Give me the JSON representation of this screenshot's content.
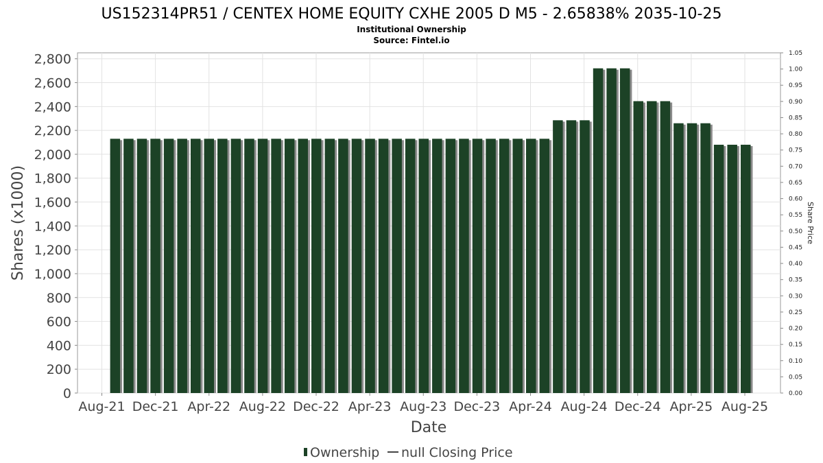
{
  "chart_data": {
    "type": "bar",
    "title": "US152314PR51 / CENTEX HOME EQUITY CXHE 2005 D M5 - 2.65838% 2035-10-25",
    "subtitle_lines": [
      "Institutional Ownership",
      "Source: Fintel.io"
    ],
    "xlabel": "Date",
    "ylabel": "Shares (x1000)",
    "y2label": "Share Price",
    "ylim": [
      0,
      2850
    ],
    "y2lim": [
      0,
      1.05
    ],
    "yticks": [
      "0",
      "200",
      "400",
      "600",
      "800",
      "1,000",
      "1,200",
      "1,400",
      "1,600",
      "1,800",
      "2,000",
      "2,200",
      "2,400",
      "2,600",
      "2,800"
    ],
    "ytick_values": [
      0,
      200,
      400,
      600,
      800,
      1000,
      1200,
      1400,
      1600,
      1800,
      2000,
      2200,
      2400,
      2600,
      2800
    ],
    "y2ticks": [
      "0.00",
      "0.05",
      "0.10",
      "0.15",
      "0.20",
      "0.25",
      "0.30",
      "0.35",
      "0.40",
      "0.45",
      "0.50",
      "0.55",
      "0.60",
      "0.65",
      "0.70",
      "0.75",
      "0.80",
      "0.85",
      "0.90",
      "0.95",
      "1.00",
      "1.05"
    ],
    "xticks": [
      "Aug-21",
      "Dec-21",
      "Apr-22",
      "Aug-22",
      "Dec-22",
      "Apr-23",
      "Aug-23",
      "Dec-23",
      "Apr-24",
      "Aug-24",
      "Dec-24",
      "Apr-25",
      "Aug-25"
    ],
    "grid": true,
    "legend_position": "bottom",
    "series": [
      {
        "name": "Ownership",
        "color": "#1c4226",
        "values": [
          2130,
          2130,
          2130,
          2130,
          2130,
          2130,
          2130,
          2130,
          2130,
          2130,
          2130,
          2130,
          2130,
          2130,
          2130,
          2130,
          2130,
          2130,
          2130,
          2130,
          2130,
          2130,
          2130,
          2130,
          2130,
          2130,
          2130,
          2130,
          2130,
          2130,
          2130,
          2130,
          2130,
          2285,
          2285,
          2285,
          2720,
          2720,
          2720,
          2445,
          2445,
          2445,
          2260,
          2260,
          2260,
          2080,
          2080,
          2080
        ]
      }
    ],
    "legend": [
      {
        "label": "Ownership",
        "kind": "bar",
        "color": "#1c4226"
      },
      {
        "label": "null Closing Price",
        "kind": "line",
        "color": "#444444"
      }
    ]
  }
}
